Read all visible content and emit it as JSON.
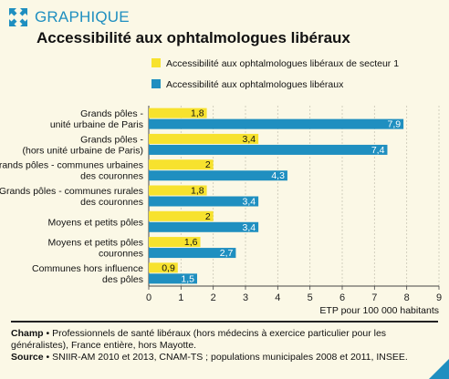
{
  "header": {
    "tag": "GRAPHIQUE",
    "title": "Accessibilité aux ophtalmologues libéraux",
    "icon": "expand-arrows-icon"
  },
  "colors": {
    "secteur1": "#f7e22e",
    "all": "#1f8fc0",
    "accent": "#1f8fc0",
    "background": "#fbf8e6"
  },
  "chart_data": {
    "type": "bar",
    "orientation": "horizontal",
    "title": "Accessibilité aux ophtalmologues libéraux",
    "xlabel": "ETP pour 100 000 habitants",
    "xlim": [
      0,
      9
    ],
    "xticks": [
      "0",
      "1",
      "2",
      "3",
      "4",
      "5",
      "6",
      "7",
      "8",
      "9"
    ],
    "grid": true,
    "legend_position": "top",
    "categories": [
      [
        "Grands pôles -",
        "unité urbaine de Paris"
      ],
      [
        "Grands pôles -",
        "(hors unité urbaine de Paris)"
      ],
      [
        "Grands pôles - communes urbaines",
        "des couronnes"
      ],
      [
        "Grands pôles - communes rurales",
        "des couronnes"
      ],
      [
        "Moyens et petits pôles"
      ],
      [
        "Moyens et petits pôles",
        "couronnes"
      ],
      [
        "Communes hors influence",
        "des pôles"
      ]
    ],
    "series": [
      {
        "name": "Accessibilité aux ophtalmologues libéraux de secteur 1",
        "values": [
          1.8,
          3.4,
          2,
          1.8,
          2,
          1.6,
          0.9
        ],
        "labels": [
          "1,8",
          "3,4",
          "2",
          "1,8",
          "2",
          "1,6",
          "0,9"
        ],
        "color": "#f7e22e"
      },
      {
        "name": "Accessibilité aux ophtalmologues libéraux",
        "values": [
          7.9,
          7.4,
          4.3,
          3.4,
          3.4,
          2.7,
          1.5
        ],
        "labels": [
          "7,9",
          "7,4",
          "4,3",
          "3,4",
          "3,4",
          "2,7",
          "1,5"
        ],
        "color": "#1f8fc0"
      }
    ]
  },
  "footer": {
    "champ_label": "Champ",
    "champ_text": " • Professionnels de santé libéraux (hors médecins à exercice particulier pour les généralistes), France entière, hors Mayotte.",
    "source_label": "Source",
    "source_text": " • SNIIR-AM 2010 et 2013, CNAM-TS ; populations municipales 2008 et 2011, INSEE."
  }
}
